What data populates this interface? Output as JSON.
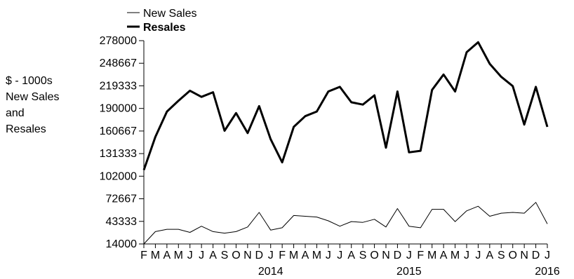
{
  "chart_data": {
    "type": "line",
    "title": "",
    "ylabel_lines": [
      "$ - 1000s",
      "New Sales",
      "and",
      "Resales"
    ],
    "ylim": [
      14000,
      278000
    ],
    "y_ticks": [
      "278000",
      "248667",
      "219333",
      "190000",
      "160667",
      "131333",
      "102000",
      "72667",
      "43333",
      "14000"
    ],
    "x_month_labels": [
      "F",
      "M",
      "A",
      "M",
      "J",
      "J",
      "A",
      "S",
      "O",
      "N",
      "D",
      "J",
      "F",
      "M",
      "A",
      "M",
      "J",
      "J",
      "A",
      "S",
      "O",
      "N",
      "D",
      "J",
      "F",
      "M",
      "A",
      "M",
      "J",
      "J",
      "A",
      "S",
      "O",
      "N",
      "D",
      "J"
    ],
    "x_year_labels": [
      {
        "index": 11,
        "label": "2014"
      },
      {
        "index": 23,
        "label": "2015"
      },
      {
        "index": 35,
        "label": "2016"
      }
    ],
    "legend_position": "top-left",
    "series": [
      {
        "name": "New Sales",
        "line_weight": "thin",
        "values": [
          14000,
          30000,
          33000,
          33000,
          29000,
          37000,
          30000,
          28000,
          30000,
          36000,
          55000,
          32000,
          35000,
          51000,
          50000,
          49000,
          44000,
          37000,
          43000,
          42000,
          46000,
          36000,
          60000,
          37000,
          35000,
          59000,
          59000,
          43000,
          57000,
          63000,
          50000,
          54000,
          55000,
          54000,
          68000,
          40000
        ]
      },
      {
        "name": "Resales",
        "line_weight": "bold",
        "values": [
          110000,
          153000,
          186000,
          200000,
          213000,
          205000,
          211000,
          161000,
          184000,
          158000,
          193000,
          150000,
          120000,
          166000,
          180000,
          186000,
          212000,
          218000,
          198000,
          195000,
          207000,
          139000,
          212000,
          133000,
          135000,
          214000,
          234000,
          212000,
          263000,
          276000,
          248000,
          231000,
          219000,
          169000,
          218000,
          166000
        ]
      }
    ]
  }
}
